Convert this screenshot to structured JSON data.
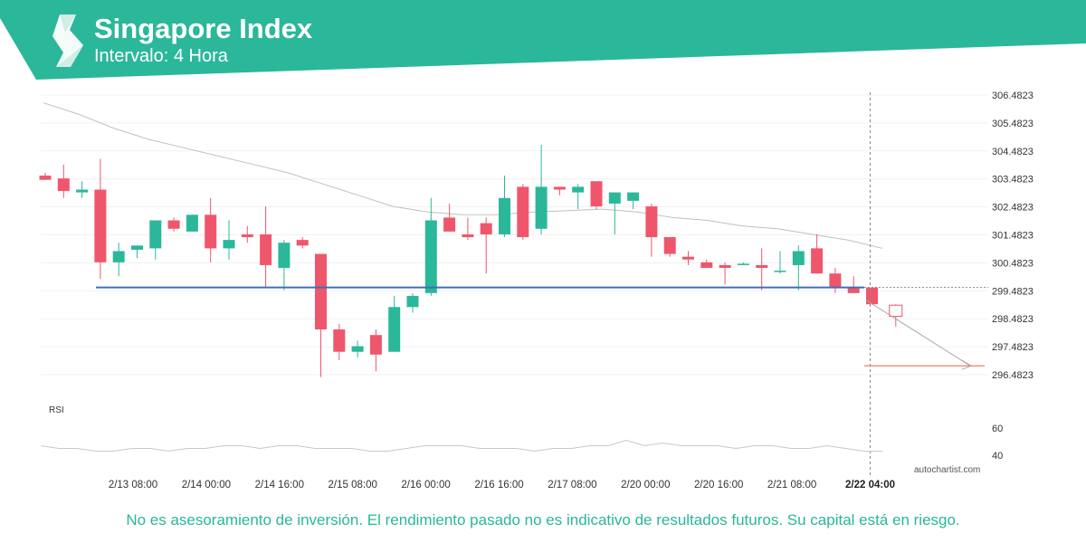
{
  "header": {
    "title": "Singapore Index",
    "subtitle": "Intervalo: 4 Hora",
    "brand_color": "#2bb79a"
  },
  "footer": {
    "disclaimer": "No es asesoramiento de inversión. El rendimiento pasado no es indicativo de resultados futuros. Su capital está en riesgo."
  },
  "watermark": "autochartist.com",
  "icons": {
    "logo": "autochartist-logo-icon"
  },
  "colors": {
    "up": "#2bb79a",
    "down": "#f0566b",
    "support": "#3f6fb5",
    "forecast": "#f07050",
    "ma": "#c0c0c0",
    "rsi": "#c8c8c8"
  },
  "chart_data": [
    {
      "type": "candlestick",
      "yticks": [
        "306.4823",
        "305.4823",
        "304.4823",
        "303.4823",
        "302.4823",
        "301.4823",
        "300.4823",
        "299.4823",
        "298.4823",
        "297.4823",
        "296.4823"
      ],
      "ylim": [
        296.0,
        306.8
      ],
      "xticks": [
        "2/13 08:00",
        "2/14 00:00",
        "2/14 16:00",
        "2/15 08:00",
        "2/16 00:00",
        "2/16 16:00",
        "2/17 08:00",
        "2/20 00:00",
        "2/20 16:00",
        "2/21 08:00",
        "2/22 04:00"
      ],
      "highlighted_xtick": "2/22 04:00",
      "candles": [
        {
          "o": 303.6,
          "h": 303.7,
          "l": 303.45,
          "c": 303.45
        },
        {
          "o": 303.5,
          "h": 304.0,
          "l": 302.8,
          "c": 303.05
        },
        {
          "o": 303.0,
          "h": 303.4,
          "l": 302.8,
          "c": 303.1
        },
        {
          "o": 303.1,
          "h": 304.2,
          "l": 299.9,
          "c": 300.5
        },
        {
          "o": 300.5,
          "h": 301.2,
          "l": 300.0,
          "c": 300.9
        },
        {
          "o": 300.95,
          "h": 301.1,
          "l": 300.65,
          "c": 301.1
        },
        {
          "o": 301.0,
          "h": 302.0,
          "l": 300.6,
          "c": 302.0
        },
        {
          "o": 302.0,
          "h": 302.1,
          "l": 301.6,
          "c": 301.7
        },
        {
          "o": 301.6,
          "h": 302.2,
          "l": 301.6,
          "c": 302.2
        },
        {
          "o": 302.2,
          "h": 302.8,
          "l": 300.5,
          "c": 301.0
        },
        {
          "o": 301.0,
          "h": 302.0,
          "l": 300.6,
          "c": 301.3
        },
        {
          "o": 301.5,
          "h": 301.8,
          "l": 301.2,
          "c": 301.4
        },
        {
          "o": 301.5,
          "h": 302.5,
          "l": 299.6,
          "c": 300.4
        },
        {
          "o": 300.3,
          "h": 301.3,
          "l": 299.5,
          "c": 301.2
        },
        {
          "o": 301.3,
          "h": 301.4,
          "l": 301.0,
          "c": 301.1
        },
        {
          "o": 300.8,
          "h": 300.8,
          "l": 296.4,
          "c": 298.1
        },
        {
          "o": 298.1,
          "h": 298.3,
          "l": 297.0,
          "c": 297.3
        },
        {
          "o": 297.3,
          "h": 297.7,
          "l": 297.1,
          "c": 297.5
        },
        {
          "o": 297.9,
          "h": 298.1,
          "l": 296.6,
          "c": 297.2
        },
        {
          "o": 297.3,
          "h": 299.3,
          "l": 297.3,
          "c": 298.9
        },
        {
          "o": 298.9,
          "h": 299.4,
          "l": 298.7,
          "c": 299.3
        },
        {
          "o": 299.4,
          "h": 302.8,
          "l": 299.3,
          "c": 302.0
        },
        {
          "o": 302.1,
          "h": 302.6,
          "l": 301.6,
          "c": 301.6
        },
        {
          "o": 301.5,
          "h": 302.1,
          "l": 301.3,
          "c": 301.4
        },
        {
          "o": 301.9,
          "h": 302.1,
          "l": 300.1,
          "c": 301.5
        },
        {
          "o": 301.5,
          "h": 303.6,
          "l": 301.4,
          "c": 302.8
        },
        {
          "o": 303.2,
          "h": 303.3,
          "l": 301.3,
          "c": 301.4
        },
        {
          "o": 301.7,
          "h": 304.7,
          "l": 301.5,
          "c": 303.2
        },
        {
          "o": 303.2,
          "h": 303.2,
          "l": 302.9,
          "c": 303.1
        },
        {
          "o": 303.0,
          "h": 303.3,
          "l": 302.4,
          "c": 303.2
        },
        {
          "o": 303.4,
          "h": 303.4,
          "l": 302.4,
          "c": 302.5
        },
        {
          "o": 302.6,
          "h": 303.0,
          "l": 301.5,
          "c": 303.0
        },
        {
          "o": 302.7,
          "h": 303.0,
          "l": 302.4,
          "c": 303.0
        },
        {
          "o": 302.5,
          "h": 302.6,
          "l": 300.7,
          "c": 301.4
        },
        {
          "o": 301.4,
          "h": 301.4,
          "l": 300.7,
          "c": 300.8
        },
        {
          "o": 300.7,
          "h": 300.9,
          "l": 300.4,
          "c": 300.6
        },
        {
          "o": 300.5,
          "h": 300.6,
          "l": 300.3,
          "c": 300.3
        },
        {
          "o": 300.4,
          "h": 300.5,
          "l": 299.7,
          "c": 300.3
        },
        {
          "o": 300.4,
          "h": 300.5,
          "l": 300.4,
          "c": 300.45
        },
        {
          "o": 300.4,
          "h": 301.0,
          "l": 299.5,
          "c": 300.3
        },
        {
          "o": 300.2,
          "h": 300.9,
          "l": 300.1,
          "c": 300.2
        },
        {
          "o": 300.4,
          "h": 301.1,
          "l": 299.5,
          "c": 300.9
        },
        {
          "o": 301.0,
          "h": 301.5,
          "l": 300.1,
          "c": 300.1
        },
        {
          "o": 300.1,
          "h": 300.3,
          "l": 299.4,
          "c": 299.6
        },
        {
          "o": 299.6,
          "h": 300.0,
          "l": 299.4,
          "c": 299.4
        },
        {
          "o": 299.6,
          "h": 299.6,
          "l": 299.0,
          "c": 299.0
        }
      ],
      "forecast_candle": {
        "o": 299.0,
        "h": 299.0,
        "l": 298.4,
        "c": 298.6
      },
      "support_level": 299.6,
      "forecast_target": 296.8,
      "moving_average": [
        306.2,
        305.8,
        305.3,
        304.9,
        304.6,
        304.3,
        304.0,
        303.7,
        303.3,
        302.9,
        302.5,
        302.3,
        302.2,
        302.2,
        302.3,
        302.35,
        302.4,
        302.3,
        302.1,
        302.0,
        301.8,
        301.7,
        301.5,
        301.3,
        301.0
      ],
      "rsi": {
        "label": "RSI",
        "yticks": [
          "60",
          "40"
        ],
        "ylim": [
          30,
          70
        ],
        "values": [
          47,
          45,
          45,
          43,
          43,
          45,
          45,
          43,
          45,
          45,
          47,
          47,
          45,
          47,
          47,
          45,
          45,
          45,
          43,
          43,
          45,
          47,
          47,
          47,
          45,
          45,
          45,
          43,
          45,
          45,
          47,
          47,
          51,
          47,
          49,
          47,
          47,
          47,
          45,
          47,
          47,
          45,
          45,
          47,
          45,
          43,
          43
        ]
      }
    }
  ]
}
